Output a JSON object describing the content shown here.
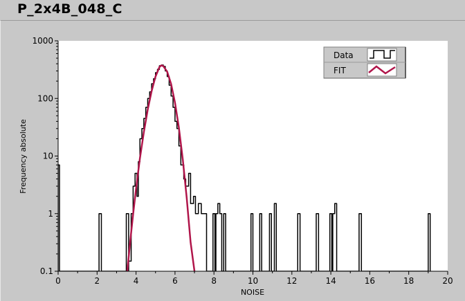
{
  "window": {
    "title": "P_2x4B_048_C"
  },
  "chart_data": {
    "type": "line",
    "xlabel": "NOISE",
    "ylabel": "Frequency absolute",
    "xlim": [
      0,
      20
    ],
    "ylim": [
      0.1,
      1000
    ],
    "yscale": "log",
    "grid": false,
    "legend_position": "top-right",
    "x_ticks": [
      "0",
      "2",
      "4",
      "6",
      "8",
      "10",
      "12",
      "14",
      "16",
      "18",
      "20"
    ],
    "y_ticks": [
      "0.1",
      "1",
      "10",
      "100",
      "1000"
    ],
    "legend": [
      {
        "name": "Data",
        "color": "#000000",
        "icon": "step-line-icon"
      },
      {
        "name": "FIT",
        "color": "#b0154a",
        "icon": "zigzag-line-icon"
      }
    ],
    "series": [
      {
        "name": "Data",
        "color": "#000000",
        "style": "step",
        "points": [
          [
            0.0,
            7
          ],
          [
            0.07,
            0.1
          ],
          [
            2.1,
            1
          ],
          [
            2.22,
            0.1
          ],
          [
            3.5,
            1
          ],
          [
            3.62,
            0.1
          ],
          [
            3.62,
            0.15
          ],
          [
            3.75,
            1
          ],
          [
            3.85,
            3
          ],
          [
            3.95,
            5
          ],
          [
            4.05,
            2
          ],
          [
            4.12,
            8
          ],
          [
            4.2,
            20
          ],
          [
            4.3,
            30
          ],
          [
            4.4,
            45
          ],
          [
            4.5,
            70
          ],
          [
            4.6,
            100
          ],
          [
            4.7,
            130
          ],
          [
            4.8,
            180
          ],
          [
            4.9,
            220
          ],
          [
            5.0,
            280
          ],
          [
            5.1,
            320
          ],
          [
            5.2,
            370
          ],
          [
            5.3,
            380
          ],
          [
            5.4,
            360
          ],
          [
            5.5,
            300
          ],
          [
            5.6,
            240
          ],
          [
            5.7,
            170
          ],
          [
            5.8,
            110
          ],
          [
            5.9,
            70
          ],
          [
            6.0,
            40
          ],
          [
            6.1,
            30
          ],
          [
            6.2,
            15
          ],
          [
            6.3,
            7
          ],
          [
            6.45,
            4
          ],
          [
            6.55,
            3
          ],
          [
            6.7,
            5
          ],
          [
            6.8,
            1.5
          ],
          [
            6.95,
            2
          ],
          [
            7.05,
            1
          ],
          [
            7.2,
            1.5
          ],
          [
            7.35,
            1
          ],
          [
            7.62,
            0.1
          ],
          [
            7.95,
            1
          ],
          [
            8.05,
            0.1
          ],
          [
            8.1,
            1
          ],
          [
            8.2,
            1.5
          ],
          [
            8.3,
            1
          ],
          [
            8.4,
            0.1
          ],
          [
            8.5,
            1
          ],
          [
            8.6,
            0.1
          ],
          [
            9.9,
            1
          ],
          [
            10.0,
            0.1
          ],
          [
            10.35,
            1
          ],
          [
            10.45,
            0.1
          ],
          [
            10.85,
            1
          ],
          [
            10.95,
            0.1
          ],
          [
            11.1,
            1.5
          ],
          [
            11.2,
            0.1
          ],
          [
            12.3,
            1
          ],
          [
            12.42,
            0.1
          ],
          [
            13.25,
            1
          ],
          [
            13.37,
            0.1
          ],
          [
            13.95,
            1
          ],
          [
            14.05,
            0.1
          ],
          [
            14.1,
            1
          ],
          [
            14.2,
            1.5
          ],
          [
            14.3,
            0.1
          ],
          [
            15.45,
            1
          ],
          [
            15.57,
            0.1
          ],
          [
            19.0,
            1
          ],
          [
            19.1,
            0.1
          ]
        ]
      },
      {
        "name": "FIT",
        "color": "#b0154a",
        "style": "line",
        "points": [
          [
            3.55,
            0.1
          ],
          [
            3.7,
            0.33
          ],
          [
            3.85,
            0.98
          ],
          [
            4.0,
            2.7
          ],
          [
            4.2,
            9.2
          ],
          [
            4.4,
            26
          ],
          [
            4.6,
            64
          ],
          [
            4.8,
            134
          ],
          [
            5.0,
            240
          ],
          [
            5.2,
            350
          ],
          [
            5.3,
            375
          ],
          [
            5.4,
            364
          ],
          [
            5.6,
            290
          ],
          [
            5.8,
            178
          ],
          [
            6.0,
            84
          ],
          [
            6.2,
            31
          ],
          [
            6.4,
            8.7
          ],
          [
            6.6,
            1.9
          ],
          [
            6.8,
            0.32
          ],
          [
            7.0,
            0.1
          ]
        ]
      }
    ]
  }
}
